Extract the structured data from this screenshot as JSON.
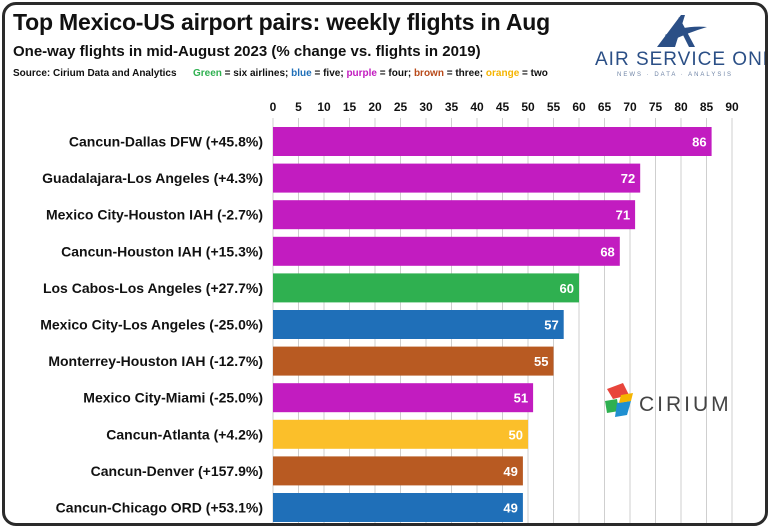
{
  "header": {
    "title": "Top Mexico-US airport pairs: weekly flights in Aug",
    "subtitle": "One-way flights in mid-August 2023 (% change vs. flights in 2019)",
    "source": "Source: Cirium Data and Analytics",
    "legend": [
      {
        "key": "Green",
        "text": " = six airlines; ",
        "color": "#2fb050"
      },
      {
        "key": "blue",
        "text": " = five; ",
        "color": "#1f6fb8"
      },
      {
        "key": "purple",
        "text": " = four; ",
        "color": "#c21cc0"
      },
      {
        "key": "brown",
        "text": " = three; ",
        "color": "#b84a1a"
      },
      {
        "key": "orange",
        "text": " = two",
        "color": "#f5b400"
      }
    ]
  },
  "brand": {
    "name": "AIR SERVICE ONE",
    "tagline": "NEWS · DATA · ANALYSIS",
    "logo_icon": "stylized-a-plane-icon",
    "accent": "#2b4f86"
  },
  "watermark": {
    "name": "CIRIUM",
    "icon": "cirium-logo-icon"
  },
  "colors": {
    "six": "#2fb050",
    "five": "#1f6fb8",
    "four": "#c21cc0",
    "three": "#b85a22",
    "two": "#fbbf2a"
  },
  "chart_data": {
    "type": "bar",
    "orientation": "horizontal",
    "title": "Top Mexico-US airport pairs: weekly flights in Aug",
    "subtitle": "One-way flights in mid-August 2023 (% change vs. flights in 2019)",
    "xlim": [
      0,
      90
    ],
    "x_ticks": [
      0,
      5,
      10,
      15,
      20,
      25,
      30,
      35,
      40,
      45,
      50,
      55,
      60,
      65,
      70,
      75,
      80,
      85,
      90
    ],
    "x_axis_position": "top",
    "grid": true,
    "categories": [
      "Cancun-Dallas DFW (+45.8%)",
      "Guadalajara-Los Angeles (+4.3%)",
      "Mexico City-Houston IAH (-2.7%)",
      "Cancun-Houston IAH (+15.3%)",
      "Los Cabos-Los Angeles (+27.7%)",
      "Mexico City-Los Angeles (-25.0%)",
      "Monterrey-Houston IAH (-12.7%)",
      "Mexico City-Miami (-25.0%)",
      "Cancun-Atlanta (+4.2%)",
      "Cancun-Denver (+157.9%)",
      "Cancun-Chicago ORD (+53.1%)"
    ],
    "values": [
      86,
      72,
      71,
      68,
      60,
      57,
      55,
      51,
      50,
      49,
      49
    ],
    "airline_group": [
      "four",
      "four",
      "four",
      "four",
      "six",
      "five",
      "three",
      "four",
      "two",
      "three",
      "five"
    ],
    "data_labels": [
      "86",
      "72",
      "71",
      "68",
      "60",
      "57",
      "55",
      "51",
      "50",
      "49",
      "49"
    ]
  }
}
